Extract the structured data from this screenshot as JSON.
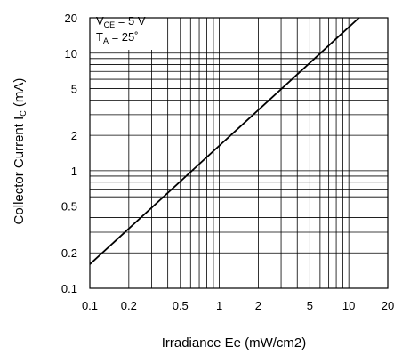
{
  "chart_data": {
    "type": "line",
    "title": "",
    "xlabel": "Irradiance Ee (mW/cm2)",
    "ylabel": {
      "main": "Collector Current I",
      "sub": "C",
      "unit": " (mA)"
    },
    "xscale": "log",
    "yscale": "log",
    "xlim": [
      0.1,
      20
    ],
    "ylim": [
      0.1,
      20
    ],
    "grid": true,
    "x_ticks": [
      {
        "value": 0.1,
        "label": "0.1"
      },
      {
        "value": 0.2,
        "label": "0.2"
      },
      {
        "value": 0.5,
        "label": "0.5"
      },
      {
        "value": 1,
        "label": "1"
      },
      {
        "value": 2,
        "label": "2"
      },
      {
        "value": 5,
        "label": "5"
      },
      {
        "value": 10,
        "label": "10"
      },
      {
        "value": 20,
        "label": "20"
      }
    ],
    "y_ticks": [
      {
        "value": 0.1,
        "label": "0.1"
      },
      {
        "value": 0.2,
        "label": "0.2"
      },
      {
        "value": 0.5,
        "label": "0.5"
      },
      {
        "value": 1,
        "label": "1"
      },
      {
        "value": 2,
        "label": "2"
      },
      {
        "value": 5,
        "label": "5"
      },
      {
        "value": 10,
        "label": "10"
      },
      {
        "value": 20,
        "label": "20"
      }
    ],
    "series": [
      {
        "x": [
          0.1,
          12
        ],
        "y": [
          0.16,
          20
        ],
        "color": "#000000"
      }
    ],
    "annotation": {
      "line1": {
        "main": "V",
        "sub": "CE",
        "rest": " = 5 V"
      },
      "line2": {
        "main": "T",
        "sub": "A",
        "rest": " = 25˚"
      },
      "position": "top-left"
    }
  }
}
